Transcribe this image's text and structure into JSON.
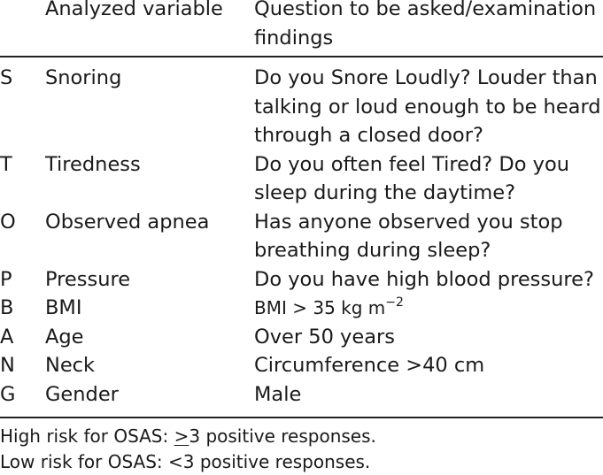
{
  "header": {
    "variable": "Analyzed variable",
    "question_line1": "Question to be asked/examination",
    "question_line2": "findings"
  },
  "rows": [
    {
      "letter": "S",
      "variable": "Snoring",
      "lines": [
        "Do you Snore Loudly? Louder than",
        "talking or loud enough to be heard",
        "through a closed door?"
      ]
    },
    {
      "letter": "T",
      "variable": "Tiredness",
      "lines": [
        "Do you often feel Tired? Do you",
        "sleep during the daytime?"
      ]
    },
    {
      "letter": "O",
      "variable": "Observed apnea",
      "lines": [
        "Has anyone observed you stop",
        "breathing during sleep?"
      ]
    },
    {
      "letter": "P",
      "variable": "Pressure",
      "lines": [
        "Do you have high blood pressure?"
      ]
    },
    {
      "letter": "B",
      "variable": "BMI",
      "bmi_text": "BMI > 35 kg m",
      "bmi_exp": "−2"
    },
    {
      "letter": "A",
      "variable": "Age",
      "lines": [
        "Over 50 years"
      ]
    },
    {
      "letter": "N",
      "variable": "Neck",
      "lines": [
        "Circumference >40 cm"
      ]
    },
    {
      "letter": "G",
      "variable": "Gender",
      "lines": [
        "Male"
      ]
    }
  ],
  "footer": {
    "high_prefix": "High risk for OSAS: ",
    "high_symbol": ">",
    "high_suffix": "3 positive responses.",
    "low": "Low risk for OSAS: <3 positive responses."
  }
}
